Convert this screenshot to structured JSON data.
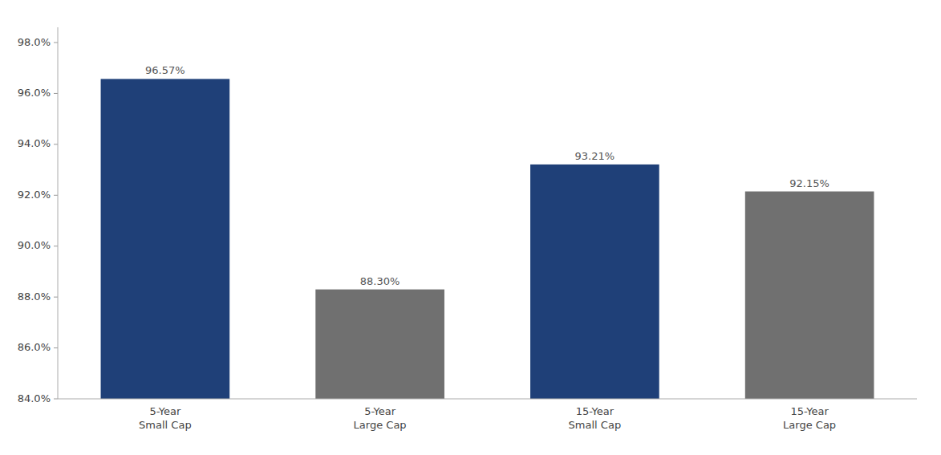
{
  "chart_data": {
    "type": "bar",
    "categories": [
      "5-Year\nSmall Cap",
      "5-Year\nLarge Cap",
      "15-Year\nSmall Cap",
      "15-Year\nLarge Cap"
    ],
    "values": [
      96.57,
      88.3,
      93.21,
      92.15
    ],
    "value_labels": [
      "96.57%",
      "88.30%",
      "93.21%",
      "92.15%"
    ],
    "data_labels": true,
    "colors": [
      "#1f4078",
      "#707070",
      "#1f4078",
      "#707070"
    ],
    "ylim": [
      84.0,
      98.6
    ],
    "yticks": [
      {
        "value": 84.0,
        "label": "84.0%"
      },
      {
        "value": 86.0,
        "label": "86.0%"
      },
      {
        "value": 88.0,
        "label": "88.0%"
      },
      {
        "value": 90.0,
        "label": "90.0%"
      },
      {
        "value": 92.0,
        "label": "92.0%"
      },
      {
        "value": 94.0,
        "label": "94.0%"
      },
      {
        "value": 96.0,
        "label": "96.0%"
      },
      {
        "value": 98.0,
        "label": "98.0%"
      }
    ],
    "grid": false
  }
}
